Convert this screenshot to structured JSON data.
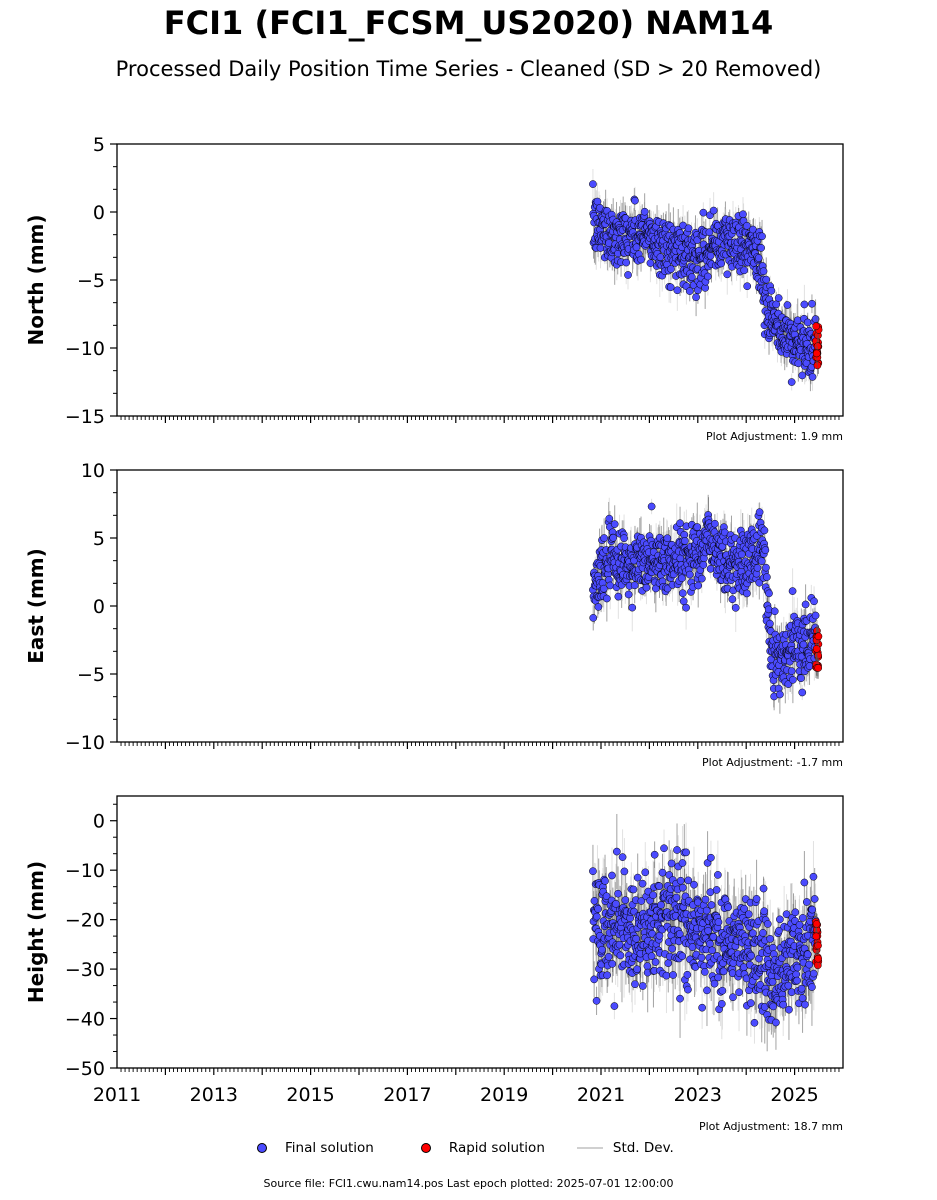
{
  "title": "FCI1 (FCI1_FCSM_US2020) NAM14",
  "subtitle": "Processed Daily Position Time Series - Cleaned (SD > 20 Removed)",
  "source_line": "Source file: FCI1.cwu.nam14.pos  Last epoch plotted: 2025-07-01 12:00:00",
  "legend": {
    "final": "Final solution",
    "rapid": "Rapid solution",
    "stddev": "Std. Dev."
  },
  "colors": {
    "final": "#4b4bff",
    "rapid": "#ff0000",
    "errorbar_dark": "#555555",
    "errorbar_light": "#c8c8c8"
  },
  "chart_data": [
    {
      "type": "scatter",
      "ylabel": "North (mm)",
      "ylim": [
        -15,
        5
      ],
      "yticks": [
        5,
        0,
        -5,
        -10,
        -15
      ],
      "xlim": [
        "2011-01-01",
        "2026-01-01"
      ],
      "plot_adjustment": "Plot Adjustment: 1.9 mm",
      "series": [
        {
          "name": "Final solution",
          "trend_x": [
            "2020-11-01",
            "2021-06-01",
            "2022-01-01",
            "2022-06-01",
            "2023-01-01",
            "2023-06-01",
            "2024-01-01",
            "2024-04-15",
            "2024-06-01",
            "2024-10-01",
            "2025-01-01",
            "2025-06-15"
          ],
          "trend_y": [
            -1.0,
            -1.8,
            -1.8,
            -2.8,
            -3.2,
            -2.3,
            -2.2,
            -3.5,
            -7.5,
            -9.0,
            -9.5,
            -10.2
          ],
          "scatter_sd": 1.1
        },
        {
          "name": "Rapid solution",
          "x_range": [
            "2025-06-10",
            "2025-07-01"
          ],
          "y_range": [
            -11.3,
            -8.2
          ]
        }
      ]
    },
    {
      "type": "scatter",
      "ylabel": "East (mm)",
      "ylim": [
        -10,
        10
      ],
      "yticks": [
        10,
        5,
        0,
        -5,
        -10
      ],
      "xlim": [
        "2011-01-01",
        "2026-01-01"
      ],
      "plot_adjustment": "Plot Adjustment: -1.7 mm",
      "series": [
        {
          "name": "Final solution",
          "trend_x": [
            "2020-11-01",
            "2021-03-01",
            "2021-08-01",
            "2022-01-01",
            "2022-08-01",
            "2023-04-01",
            "2023-09-01",
            "2024-01-01",
            "2024-05-15",
            "2024-07-01",
            "2024-10-01",
            "2025-01-01",
            "2025-06-15"
          ],
          "trend_y": [
            1.0,
            3.5,
            3.0,
            3.2,
            3.2,
            4.8,
            3.0,
            3.2,
            4.5,
            -3.0,
            -4.0,
            -2.5,
            -2.5
          ],
          "scatter_sd": 1.2
        },
        {
          "name": "Rapid solution",
          "x_range": [
            "2025-06-10",
            "2025-07-01"
          ],
          "y_range": [
            -4.6,
            -1.8
          ]
        }
      ]
    },
    {
      "type": "scatter",
      "ylabel": "Height (mm)",
      "ylim": [
        -50,
        5
      ],
      "yticks": [
        0,
        -10,
        -20,
        -30,
        -40,
        -50
      ],
      "xlim": [
        "2011-01-01",
        "2026-01-01"
      ],
      "xticks": [
        "2011",
        "2013",
        "2015",
        "2017",
        "2019",
        "2021",
        "2023",
        "2025"
      ],
      "plot_adjustment": "Plot Adjustment: 18.7 mm",
      "series": [
        {
          "name": "Final solution",
          "trend_x": [
            "2020-11-01",
            "2021-06-01",
            "2022-01-01",
            "2022-06-01",
            "2023-01-01",
            "2023-06-01",
            "2024-01-01",
            "2024-08-01",
            "2025-01-01",
            "2025-06-15"
          ],
          "trend_y": [
            -20,
            -21,
            -22,
            -18,
            -22,
            -24,
            -25,
            -30,
            -27,
            -24
          ],
          "scatter_sd": 5.5
        },
        {
          "name": "Rapid solution",
          "x_range": [
            "2025-06-10",
            "2025-07-01"
          ],
          "y_range": [
            -31,
            -20
          ]
        }
      ]
    }
  ]
}
